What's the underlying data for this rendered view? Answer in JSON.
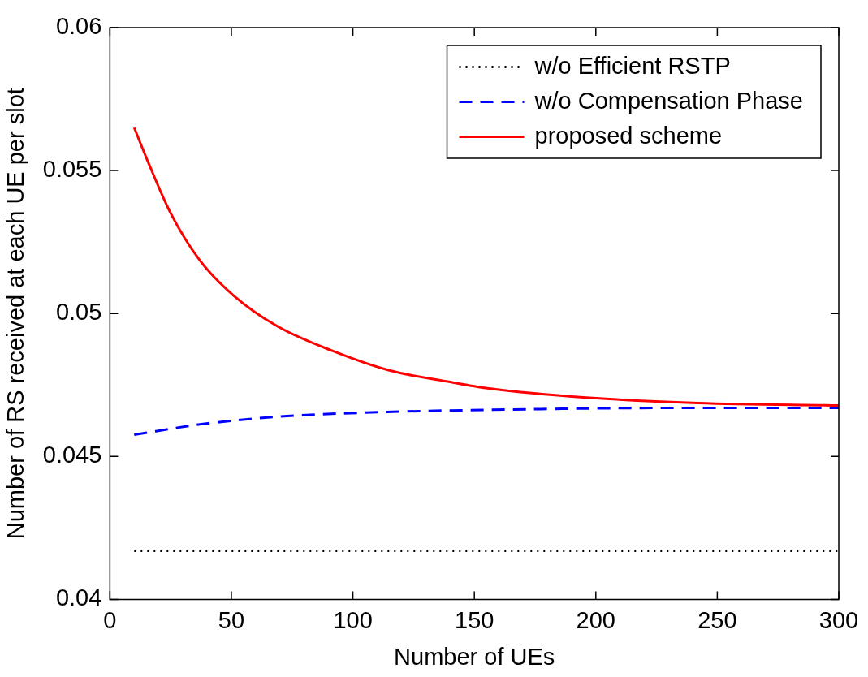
{
  "chart_data": {
    "type": "line",
    "xlabel": "Number of UEs",
    "ylabel": "Number of RS received at each UE per slot",
    "xlim": [
      0,
      300
    ],
    "xticks": [
      0,
      50,
      100,
      150,
      200,
      250,
      300
    ],
    "ylim": [
      0.04,
      0.06
    ],
    "yticks": [
      0.04,
      0.045,
      0.05,
      0.055,
      0.06
    ],
    "grid": false,
    "legend": "top right",
    "marker": "none",
    "series": [
      {
        "name": "w/o Efficient RSTP",
        "color": "#000000",
        "line_style": "dotted",
        "x": [
          10,
          300
        ],
        "values": [
          0.0417,
          0.0417
        ]
      },
      {
        "name": "w/o Compensation Phase",
        "color": "#0000ff",
        "line_style": "dashed",
        "x": [
          10,
          37,
          69,
          104,
          155,
          242,
          300
        ],
        "values": [
          0.04576,
          0.04612,
          0.04639,
          0.04653,
          0.04663,
          0.0467,
          0.0467
        ]
      },
      {
        "name": "proposed scheme",
        "color": "#ff0000",
        "line_style": "solid",
        "x": [
          10,
          16,
          25,
          37,
          51,
          69,
          92,
          115,
          139,
          156,
          196,
          242,
          300
        ],
        "values": [
          0.0565,
          0.05524,
          0.05351,
          0.05186,
          0.05062,
          0.04955,
          0.04868,
          0.04801,
          0.04762,
          0.04738,
          0.04706,
          0.04687,
          0.04678
        ]
      }
    ]
  }
}
